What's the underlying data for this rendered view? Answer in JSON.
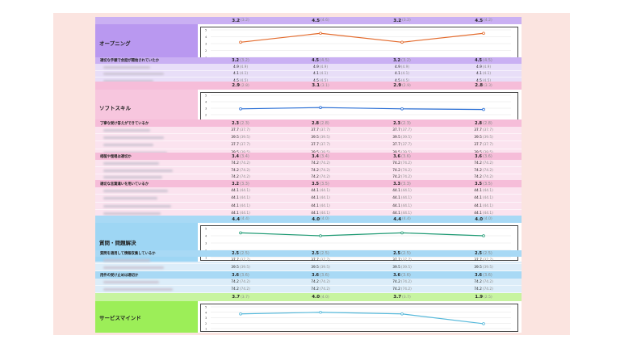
{
  "sections": [
    {
      "title": "オープニング",
      "color": "#7b3fd6",
      "summary": [
        {
          "v": "3.2",
          "p": "(3.2)"
        },
        {
          "v": "4.5",
          "p": "(4.6)"
        },
        {
          "v": "3.2",
          "p": "(3.2)"
        },
        {
          "v": "4.5",
          "p": "(4.2)"
        }
      ],
      "chart_data": {
        "type": "line",
        "values": [
          3.2,
          4.5,
          3.2,
          4.5
        ],
        "ylim": [
          1,
          5
        ],
        "yticks": [
          "5",
          "4",
          "3",
          "2",
          "1"
        ],
        "color": "#e36a2c"
      },
      "groups": [
        {
          "question": "適切な手順で会話が開始されていたか",
          "header": [
            {
              "v": "3.2",
              "p": "(3.2)"
            },
            {
              "v": "4.5",
              "p": "(4.5)"
            },
            {
              "v": "3.2",
              "p": "(3.2)"
            },
            {
              "v": "4.5",
              "p": "(4.5)"
            }
          ],
          "rows": [
            [
              {
                "v": "4.9",
                "p": "(4.9)"
              },
              {
                "v": "4.9",
                "p": "(4.9)"
              },
              {
                "v": "4.9",
                "p": "(4.9)"
              },
              {
                "v": "4.9",
                "p": "(4.9)"
              }
            ],
            [
              {
                "v": "4.1",
                "p": "(4.1)"
              },
              {
                "v": "4.1",
                "p": "(4.1)"
              },
              {
                "v": "4.1",
                "p": "(4.1)"
              },
              {
                "v": "4.1",
                "p": "(4.1)"
              }
            ],
            [
              {
                "v": "4.5",
                "p": "(4.5)"
              },
              {
                "v": "4.5",
                "p": "(4.5)"
              },
              {
                "v": "4.5",
                "p": "(4.5)"
              },
              {
                "v": "4.5",
                "p": "(4.5)"
              }
            ]
          ]
        }
      ]
    },
    {
      "title": "ソフトスキル",
      "color": "#e06aa6",
      "summary": [
        {
          "v": "2.9",
          "p": "(2.8)"
        },
        {
          "v": "3.1",
          "p": "(3.1)"
        },
        {
          "v": "2.9",
          "p": "(2.9)"
        },
        {
          "v": "2.8",
          "p": "(3.3)"
        }
      ],
      "chart_data": {
        "type": "line",
        "values": [
          2.9,
          3.1,
          2.9,
          2.8
        ],
        "ylim": [
          1,
          5
        ],
        "yticks": [
          "5",
          "4",
          "3",
          "2",
          "1"
        ],
        "color": "#2a6fd6"
      },
      "groups": [
        {
          "question": "丁寧な受け答えができているか",
          "header": [
            {
              "v": "2.3",
              "p": "(2.3)"
            },
            {
              "v": "2.8",
              "p": "(2.8)"
            },
            {
              "v": "2.3",
              "p": "(2.3)"
            },
            {
              "v": "2.8",
              "p": "(2.8)"
            }
          ],
          "rows": [
            [
              {
                "v": "37.7",
                "p": "(37.7)"
              },
              {
                "v": "37.7",
                "p": "(37.7)"
              },
              {
                "v": "37.7",
                "p": "(37.7)"
              },
              {
                "v": "37.7",
                "p": "(37.7)"
              }
            ],
            [
              {
                "v": "39.5",
                "p": "(39.5)"
              },
              {
                "v": "39.5",
                "p": "(39.5)"
              },
              {
                "v": "39.5",
                "p": "(39.5)"
              },
              {
                "v": "39.5",
                "p": "(39.5)"
              }
            ],
            [
              {
                "v": "37.7",
                "p": "(37.7)"
              },
              {
                "v": "37.7",
                "p": "(37.7)"
              },
              {
                "v": "37.7",
                "p": "(37.7)"
              },
              {
                "v": "37.7",
                "p": "(37.7)"
              }
            ],
            [
              {
                "v": "39.5",
                "p": "(39.5)"
              },
              {
                "v": "39.5",
                "p": "(39.5)"
              },
              {
                "v": "39.5",
                "p": "(39.5)"
              },
              {
                "v": "39.5",
                "p": "(39.5)"
              }
            ]
          ]
        },
        {
          "question": "相槌や復唱は適切か",
          "header": [
            {
              "v": "3.4",
              "p": "(3.4)"
            },
            {
              "v": "3.4",
              "p": "(3.4)"
            },
            {
              "v": "3.6",
              "p": "(3.6)"
            },
            {
              "v": "3.6",
              "p": "(3.6)"
            }
          ],
          "rows": [
            [
              {
                "v": "74.2",
                "p": "(74.2)"
              },
              {
                "v": "74.2",
                "p": "(74.2)"
              },
              {
                "v": "74.2",
                "p": "(74.2)"
              },
              {
                "v": "74.2",
                "p": "(74.2)"
              }
            ],
            [
              {
                "v": "74.2",
                "p": "(74.2)"
              },
              {
                "v": "74.2",
                "p": "(74.2)"
              },
              {
                "v": "74.2",
                "p": "(74.2)"
              },
              {
                "v": "74.2",
                "p": "(74.2)"
              }
            ],
            [
              {
                "v": "74.2",
                "p": "(74.2)"
              },
              {
                "v": "74.2",
                "p": "(74.2)"
              },
              {
                "v": "74.2",
                "p": "(74.2)"
              },
              {
                "v": "74.2",
                "p": "(74.2)"
              }
            ]
          ]
        },
        {
          "question": "適切な言葉遣いを用いているか",
          "header": [
            {
              "v": "3.2",
              "p": "(3.3)"
            },
            {
              "v": "3.5",
              "p": "(3.5)"
            },
            {
              "v": "3.3",
              "p": "(3.3)"
            },
            {
              "v": "3.5",
              "p": "(3.5)"
            }
          ],
          "rows": [
            [
              {
                "v": "44.1",
                "p": "(44.1)"
              },
              {
                "v": "44.1",
                "p": "(44.1)"
              },
              {
                "v": "44.1",
                "p": "(44.1)"
              },
              {
                "v": "44.1",
                "p": "(44.1)"
              }
            ],
            [
              {
                "v": "44.1",
                "p": "(44.1)"
              },
              {
                "v": "44.1",
                "p": "(44.1)"
              },
              {
                "v": "44.1",
                "p": "(44.1)"
              },
              {
                "v": "44.1",
                "p": "(44.1)"
              }
            ],
            [
              {
                "v": "44.1",
                "p": "(44.1)"
              },
              {
                "v": "44.1",
                "p": "(44.1)"
              },
              {
                "v": "44.1",
                "p": "(44.1)"
              },
              {
                "v": "44.1",
                "p": "(44.1)"
              }
            ],
            [
              {
                "v": "44.1",
                "p": "(44.1)"
              },
              {
                "v": "44.1",
                "p": "(44.1)"
              },
              {
                "v": "44.1",
                "p": "(44.1)"
              },
              {
                "v": "44.1",
                "p": "(44.1)"
              }
            ]
          ]
        }
      ]
    },
    {
      "title": "質問・問題解決",
      "color": "#4fb3e8",
      "summary": [
        {
          "v": "4.4",
          "p": "(4.4)"
        },
        {
          "v": "4.0",
          "p": "(4.0)"
        },
        {
          "v": "4.4",
          "p": "(4.4)"
        },
        {
          "v": "4.0",
          "p": "(4.0)"
        }
      ],
      "chart_data": {
        "type": "line",
        "values": [
          4.4,
          4.0,
          4.4,
          4.0
        ],
        "ylim": [
          1,
          5
        ],
        "yticks": [
          "5",
          "4",
          "3",
          "2",
          "1"
        ],
        "color": "#1e9a73"
      },
      "groups": [
        {
          "question": "質問を適用して情報収集しているか",
          "header": [
            {
              "v": "2.5",
              "p": "(2.5)"
            },
            {
              "v": "2.5",
              "p": "(2.5)"
            },
            {
              "v": "2.5",
              "p": "(2.5)"
            },
            {
              "v": "2.5",
              "p": "(2.5)"
            }
          ],
          "rows": [
            [
              {
                "v": "37.7",
                "p": "(37.7)"
              },
              {
                "v": "37.7",
                "p": "(37.7)"
              },
              {
                "v": "37.7",
                "p": "(37.7)"
              },
              {
                "v": "37.7",
                "p": "(37.7)"
              }
            ],
            [
              {
                "v": "39.5",
                "p": "(39.5)"
              },
              {
                "v": "39.5",
                "p": "(39.5)"
              },
              {
                "v": "39.5",
                "p": "(39.5)"
              },
              {
                "v": "39.5",
                "p": "(39.5)"
              }
            ]
          ]
        },
        {
          "question": "用件の受け止めは適切か",
          "header": [
            {
              "v": "3.6",
              "p": "(3.6)"
            },
            {
              "v": "3.6",
              "p": "(3.6)"
            },
            {
              "v": "3.6",
              "p": "(3.6)"
            },
            {
              "v": "3.6",
              "p": "(3.6)"
            }
          ],
          "rows": [
            [
              {
                "v": "74.2",
                "p": "(74.2)"
              },
              {
                "v": "74.2",
                "p": "(74.2)"
              },
              {
                "v": "74.2",
                "p": "(74.2)"
              },
              {
                "v": "74.2",
                "p": "(74.2)"
              }
            ],
            [
              {
                "v": "74.2",
                "p": "(74.2)"
              },
              {
                "v": "74.2",
                "p": "(74.2)"
              },
              {
                "v": "74.2",
                "p": "(74.2)"
              },
              {
                "v": "74.2",
                "p": "(74.2)"
              }
            ]
          ]
        }
      ]
    },
    {
      "title": "サービスマインド",
      "color": "#8ee63e",
      "summary": [
        {
          "v": "3.7",
          "p": "(3.7)"
        },
        {
          "v": "4.0",
          "p": "(4.0)"
        },
        {
          "v": "3.7",
          "p": "(3.7)"
        },
        {
          "v": "1.9",
          "p": "(2.5)"
        }
      ],
      "chart_data": {
        "type": "line",
        "values": [
          3.7,
          4.0,
          3.7,
          1.9
        ],
        "ylim": [
          1,
          5
        ],
        "yticks": [
          "5",
          "4",
          "3",
          "2",
          "1"
        ],
        "color": "#55b8da"
      },
      "groups": []
    }
  ]
}
